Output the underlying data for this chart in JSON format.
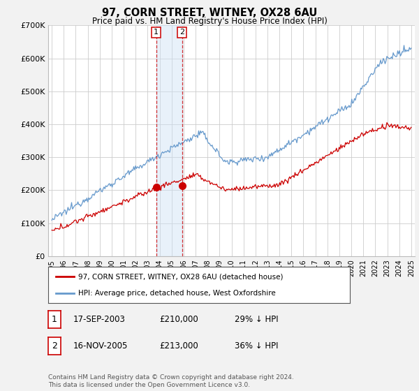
{
  "title": "97, CORN STREET, WITNEY, OX28 6AU",
  "subtitle": "Price paid vs. HM Land Registry's House Price Index (HPI)",
  "legend_line1": "97, CORN STREET, WITNEY, OX28 6AU (detached house)",
  "legend_line2": "HPI: Average price, detached house, West Oxfordshire",
  "sale1_date": "17-SEP-2003",
  "sale1_price": "£210,000",
  "sale1_hpi": "29% ↓ HPI",
  "sale2_date": "16-NOV-2005",
  "sale2_price": "£213,000",
  "sale2_hpi": "36% ↓ HPI",
  "footnote": "Contains HM Land Registry data © Crown copyright and database right 2024.\nThis data is licensed under the Open Government Licence v3.0.",
  "red_color": "#cc0000",
  "blue_color": "#6699cc",
  "bg_color": "#f2f2f2",
  "plot_bg_color": "#ffffff",
  "ylim": [
    0,
    700000
  ],
  "yticks": [
    0,
    100000,
    200000,
    300000,
    400000,
    500000,
    600000,
    700000
  ],
  "ytick_labels": [
    "£0",
    "£100K",
    "£200K",
    "£300K",
    "£400K",
    "£500K",
    "£600K",
    "£700K"
  ],
  "sale1_year": 2003.71,
  "sale1_value": 210000,
  "sale2_year": 2005.88,
  "sale2_value": 213000,
  "xmin": 1994.7,
  "xmax": 2025.3
}
